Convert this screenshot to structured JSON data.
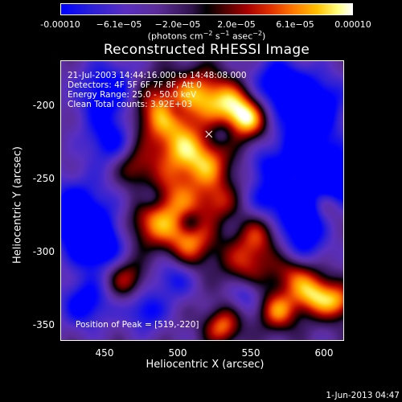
{
  "colorbar": {
    "ticks": [
      "-0.00010",
      "−6.1e−05",
      "−2.0e−05",
      "2.0e−05",
      "6.1e−05",
      "0.00010"
    ],
    "unit_main": "(photons cm",
    "unit_exp1": "−2",
    "unit_mid": " s",
    "unit_exp2": "−1",
    "unit_mid2": " asec",
    "unit_exp3": "−2",
    "unit_end": ")"
  },
  "chart_data": {
    "type": "heatmap",
    "title": "Reconstructed RHESSI Image",
    "xlabel": "Heliocentric X (arcsec)",
    "ylabel": "Heliocentric Y (arcsec)",
    "xlim": [
      418,
      612
    ],
    "ylim": [
      -362,
      -170
    ],
    "xticks": [
      "450",
      "500",
      "550",
      "600"
    ],
    "yticks": [
      "-200",
      "-250",
      "-300",
      "-350"
    ],
    "clim": [
      -0.0001,
      0.0001
    ],
    "colormap": "blue-purple-black-red-yellow-white",
    "peak_position": [
      519,
      -220
    ],
    "annotations": {
      "time_range": "21-Jul-2003 14:44:16.000 to 14:48:08.000",
      "detectors": "Detectors: 4F 5F 6F 7F 8F, Att 0",
      "energy": "Energy Range: 25.0 - 50.0 keV",
      "clean": "Clean     Total counts: 3.92E+03",
      "peak": "Position of Peak = [519,-220]"
    }
  },
  "footer_date": "1-Jun-2013 04:47"
}
